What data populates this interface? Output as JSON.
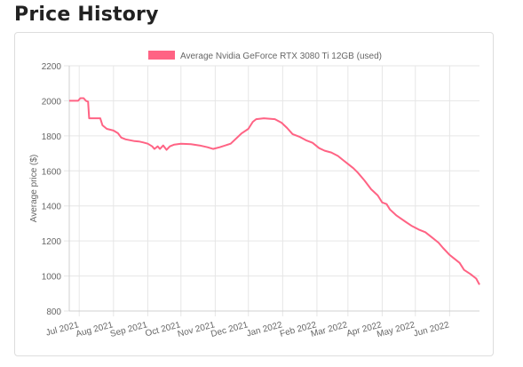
{
  "page": {
    "title": "Price History"
  },
  "colors": {
    "series": "#ff6384",
    "legend_fill": "#ff6384",
    "grid": "#e6e6e6",
    "text": "#666666"
  },
  "chart_data": {
    "type": "line",
    "title": "",
    "xlabel": "",
    "ylabel": "Average price ($)",
    "ylim": [
      800,
      2200
    ],
    "yticks": [
      800,
      1000,
      1200,
      1400,
      1600,
      1800,
      2000,
      2200
    ],
    "xlim": [
      "2021-06-22",
      "2022-06-28"
    ],
    "xticks": [
      {
        "label": "Jul 2021",
        "date": "2021-07-01"
      },
      {
        "label": "Aug 2021",
        "date": "2021-08-01"
      },
      {
        "label": "Sep 2021",
        "date": "2021-09-01"
      },
      {
        "label": "Oct 2021",
        "date": "2021-10-01"
      },
      {
        "label": "Nov 2021",
        "date": "2021-11-01"
      },
      {
        "label": "Dec 2021",
        "date": "2021-12-01"
      },
      {
        "label": "Jan 2022",
        "date": "2022-01-01"
      },
      {
        "label": "Feb 2022",
        "date": "2022-02-01"
      },
      {
        "label": "Mar 2022",
        "date": "2022-03-01"
      },
      {
        "label": "Apr 2022",
        "date": "2022-04-01"
      },
      {
        "label": "May 2022",
        "date": "2022-05-01"
      },
      {
        "label": "Jun 2022",
        "date": "2022-06-01"
      }
    ],
    "grid": true,
    "legend": "top-center",
    "series": [
      {
        "name": "Average Nvidia GeForce RTX 3080 Ti 12GB (used)",
        "points": [
          [
            "2021-06-22",
            2000
          ],
          [
            "2021-06-30",
            2000
          ],
          [
            "2021-07-02",
            2015
          ],
          [
            "2021-07-05",
            2015
          ],
          [
            "2021-07-07",
            2000
          ],
          [
            "2021-07-09",
            1995
          ],
          [
            "2021-07-10",
            1900
          ],
          [
            "2021-07-20",
            1900
          ],
          [
            "2021-07-22",
            1860
          ],
          [
            "2021-07-26",
            1840
          ],
          [
            "2021-08-01",
            1830
          ],
          [
            "2021-08-05",
            1815
          ],
          [
            "2021-08-08",
            1790
          ],
          [
            "2021-08-12",
            1780
          ],
          [
            "2021-08-16",
            1775
          ],
          [
            "2021-08-20",
            1770
          ],
          [
            "2021-08-24",
            1768
          ],
          [
            "2021-08-28",
            1762
          ],
          [
            "2021-09-01",
            1755
          ],
          [
            "2021-09-05",
            1740
          ],
          [
            "2021-09-07",
            1725
          ],
          [
            "2021-09-10",
            1740
          ],
          [
            "2021-09-12",
            1725
          ],
          [
            "2021-09-15",
            1745
          ],
          [
            "2021-09-18",
            1720
          ],
          [
            "2021-09-21",
            1740
          ],
          [
            "2021-09-25",
            1750
          ],
          [
            "2021-10-01",
            1755
          ],
          [
            "2021-10-10",
            1752
          ],
          [
            "2021-10-18",
            1745
          ],
          [
            "2021-10-25",
            1735
          ],
          [
            "2021-10-30",
            1725
          ],
          [
            "2021-11-05",
            1735
          ],
          [
            "2021-11-15",
            1755
          ],
          [
            "2021-11-20",
            1785
          ],
          [
            "2021-11-25",
            1815
          ],
          [
            "2021-12-01",
            1840
          ],
          [
            "2021-12-05",
            1880
          ],
          [
            "2021-12-08",
            1895
          ],
          [
            "2021-12-15",
            1900
          ],
          [
            "2021-12-25",
            1895
          ],
          [
            "2021-12-31",
            1875
          ],
          [
            "2022-01-05",
            1845
          ],
          [
            "2022-01-10",
            1810
          ],
          [
            "2022-01-16",
            1795
          ],
          [
            "2022-01-22",
            1775
          ],
          [
            "2022-01-28",
            1760
          ],
          [
            "2022-02-03",
            1730
          ],
          [
            "2022-02-08",
            1715
          ],
          [
            "2022-02-14",
            1705
          ],
          [
            "2022-02-20",
            1685
          ],
          [
            "2022-02-25",
            1660
          ],
          [
            "2022-03-01",
            1640
          ],
          [
            "2022-03-06",
            1615
          ],
          [
            "2022-03-10",
            1590
          ],
          [
            "2022-03-16",
            1545
          ],
          [
            "2022-03-22",
            1495
          ],
          [
            "2022-03-28",
            1460
          ],
          [
            "2022-04-01",
            1420
          ],
          [
            "2022-04-05",
            1410
          ],
          [
            "2022-04-08",
            1380
          ],
          [
            "2022-04-14",
            1345
          ],
          [
            "2022-04-22",
            1310
          ],
          [
            "2022-04-28",
            1285
          ],
          [
            "2022-05-04",
            1265
          ],
          [
            "2022-05-10",
            1250
          ],
          [
            "2022-05-16",
            1220
          ],
          [
            "2022-05-22",
            1190
          ],
          [
            "2022-05-26",
            1160
          ],
          [
            "2022-06-01",
            1120
          ],
          [
            "2022-06-06",
            1095
          ],
          [
            "2022-06-10",
            1075
          ],
          [
            "2022-06-14",
            1035
          ],
          [
            "2022-06-20",
            1010
          ],
          [
            "2022-06-25",
            985
          ],
          [
            "2022-06-28",
            950
          ]
        ]
      }
    ]
  }
}
